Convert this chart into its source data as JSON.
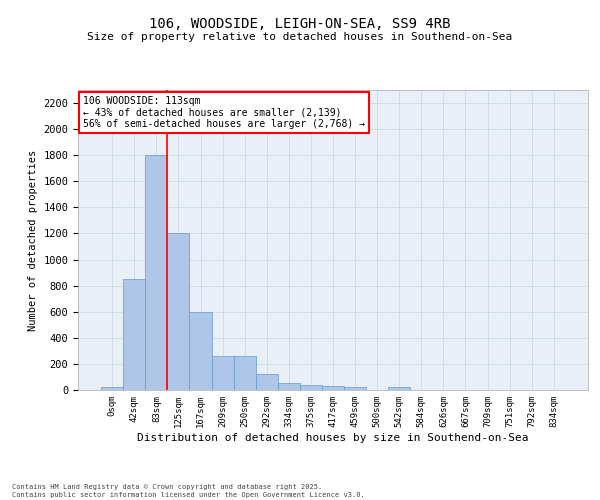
{
  "title_line1": "106, WOODSIDE, LEIGH-ON-SEA, SS9 4RB",
  "title_line2": "Size of property relative to detached houses in Southend-on-Sea",
  "xlabel": "Distribution of detached houses by size in Southend-on-Sea",
  "ylabel": "Number of detached properties",
  "bar_labels": [
    "0sqm",
    "42sqm",
    "83sqm",
    "125sqm",
    "167sqm",
    "209sqm",
    "250sqm",
    "292sqm",
    "334sqm",
    "375sqm",
    "417sqm",
    "459sqm",
    "500sqm",
    "542sqm",
    "584sqm",
    "626sqm",
    "667sqm",
    "709sqm",
    "751sqm",
    "792sqm",
    "834sqm"
  ],
  "bar_values": [
    20,
    850,
    1800,
    1200,
    600,
    260,
    260,
    120,
    50,
    40,
    30,
    20,
    0,
    20,
    0,
    0,
    0,
    0,
    0,
    0,
    0
  ],
  "bar_color": "#aec6e8",
  "bar_edgecolor": "#6699cc",
  "vline_color": "red",
  "vline_x": 2.5,
  "ylim": [
    0,
    2300
  ],
  "yticks": [
    0,
    200,
    400,
    600,
    800,
    1000,
    1200,
    1400,
    1600,
    1800,
    2000,
    2200
  ],
  "annotation_title": "106 WOODSIDE: 113sqm",
  "annotation_line1": "← 43% of detached houses are smaller (2,139)",
  "annotation_line2": "56% of semi-detached houses are larger (2,768) →",
  "annotation_box_color": "white",
  "annotation_box_edgecolor": "red",
  "grid_color": "#ccd9e8",
  "bg_color": "#e8eff7",
  "footer_line1": "Contains HM Land Registry data © Crown copyright and database right 2025.",
  "footer_line2": "Contains public sector information licensed under the Open Government Licence v3.0."
}
